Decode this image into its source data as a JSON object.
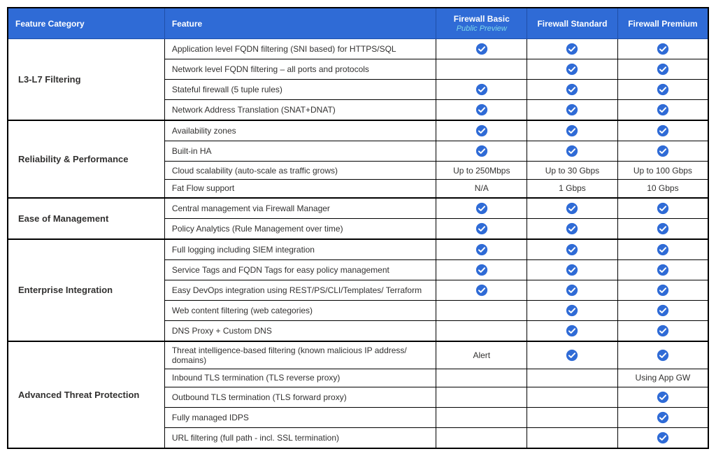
{
  "colors": {
    "header_bg": "#2f6bd6",
    "header_fg": "#ffffff",
    "subheader_fg": "#7fd8e8",
    "border": "#000000",
    "check_bg": "#2f6bd6",
    "check_tick": "#ffffff",
    "text": "#323130"
  },
  "headers": {
    "category": "Feature Category",
    "feature": "Feature",
    "tiers": [
      {
        "name": "Firewall Basic",
        "sub": "Public Preview"
      },
      {
        "name": "Firewall Standard",
        "sub": ""
      },
      {
        "name": "Firewall Premium",
        "sub": ""
      }
    ]
  },
  "categories": [
    {
      "name": "L3-L7 Filtering",
      "rows": [
        {
          "feature": "Application level FQDN filtering (SNI based) for HTTPS/SQL",
          "vals": [
            "check",
            "check",
            "check"
          ]
        },
        {
          "feature": "Network level FQDN filtering – all ports and protocols",
          "vals": [
            "",
            "check",
            "check"
          ]
        },
        {
          "feature": "Stateful firewall (5 tuple rules)",
          "vals": [
            "check",
            "check",
            "check"
          ]
        },
        {
          "feature": "Network Address Translation (SNAT+DNAT)",
          "vals": [
            "check",
            "check",
            "check"
          ]
        }
      ]
    },
    {
      "name": "Reliability & Performance",
      "rows": [
        {
          "feature": "Availability zones",
          "vals": [
            "check",
            "check",
            "check"
          ]
        },
        {
          "feature": "Built-in HA",
          "vals": [
            "check",
            "check",
            "check"
          ]
        },
        {
          "feature": "Cloud scalability (auto-scale as traffic grows)",
          "vals": [
            "Up to 250Mbps",
            "Up to 30 Gbps",
            "Up to 100 Gbps"
          ]
        },
        {
          "feature": "Fat Flow support",
          "vals": [
            "N/A",
            "1 Gbps",
            "10 Gbps"
          ]
        }
      ]
    },
    {
      "name": "Ease of Management",
      "rows": [
        {
          "feature": "Central management via Firewall Manager",
          "vals": [
            "check",
            "check",
            "check"
          ]
        },
        {
          "feature": "Policy Analytics (Rule Management over time)",
          "vals": [
            "check",
            "check",
            "check"
          ]
        }
      ]
    },
    {
      "name": "Enterprise Integration",
      "rows": [
        {
          "feature": "Full logging including SIEM integration",
          "vals": [
            "check",
            "check",
            "check"
          ]
        },
        {
          "feature": "Service Tags and FQDN Tags for easy policy management",
          "vals": [
            "check",
            "check",
            "check"
          ]
        },
        {
          "feature": "Easy DevOps integration using REST/PS/CLI/Templates/ Terraform",
          "vals": [
            "check",
            "check",
            "check"
          ]
        },
        {
          "feature": "Web content filtering (web categories)",
          "vals": [
            "",
            "check",
            "check"
          ]
        },
        {
          "feature": "DNS Proxy + Custom DNS",
          "vals": [
            "",
            "check",
            "check"
          ]
        }
      ]
    },
    {
      "name": "Advanced Threat Protection",
      "rows": [
        {
          "feature": "Threat intelligence-based filtering (known malicious IP address/ domains)",
          "vals": [
            "Alert",
            "check",
            "check"
          ]
        },
        {
          "feature": "Inbound TLS termination (TLS reverse proxy)",
          "vals": [
            "",
            "",
            "Using App GW"
          ]
        },
        {
          "feature": "Outbound TLS termination (TLS forward proxy)",
          "vals": [
            "",
            "",
            "check"
          ]
        },
        {
          "feature": "Fully managed IDPS",
          "vals": [
            "",
            "",
            "check"
          ]
        },
        {
          "feature": "URL filtering (full path - incl. SSL termination)",
          "vals": [
            "",
            "",
            "check"
          ]
        }
      ]
    }
  ]
}
